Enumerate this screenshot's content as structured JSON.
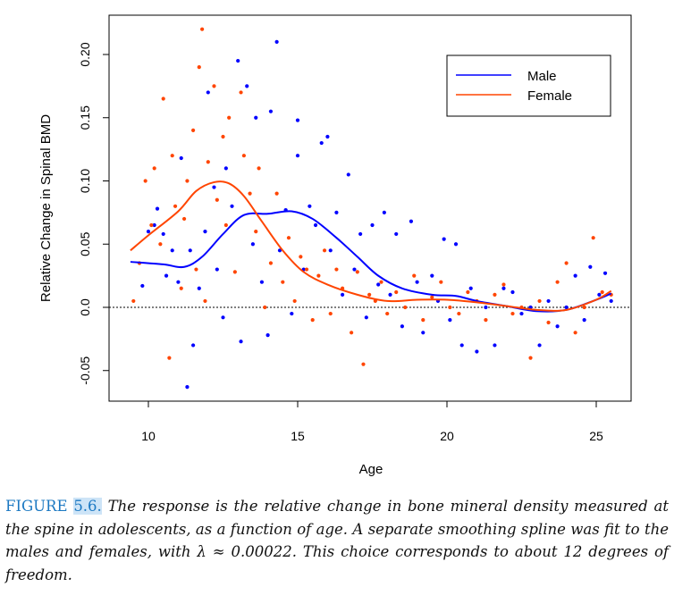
{
  "chart_data": {
    "type": "scatter",
    "xlabel": "Age",
    "ylabel": "Relative Change in Spinal BMD",
    "xlim": [
      9.4,
      25.9
    ],
    "ylim": [
      -0.074,
      0.231
    ],
    "xticks": [
      "10",
      "15",
      "20",
      "25"
    ],
    "xtick_values": [
      10,
      15,
      20,
      25
    ],
    "yticks": [
      "-0.05",
      "0.0",
      "0.05",
      "0.10",
      "0.15",
      "0.20"
    ],
    "ytick_values": [
      -0.05,
      0,
      0.05,
      0.1,
      0.15,
      0.2
    ],
    "reference_line": {
      "y": 0,
      "style": "dotted"
    },
    "grid": false,
    "legend_position": "top-right",
    "series": [
      {
        "name": "Male",
        "color": "#0000ff",
        "points": [
          [
            9.8,
            0.017
          ],
          [
            10.0,
            0.06
          ],
          [
            10.2,
            0.065
          ],
          [
            10.3,
            0.078
          ],
          [
            10.5,
            0.058
          ],
          [
            10.6,
            0.025
          ],
          [
            10.8,
            0.045
          ],
          [
            11.0,
            0.02
          ],
          [
            11.1,
            0.118
          ],
          [
            11.3,
            -0.063
          ],
          [
            11.4,
            0.045
          ],
          [
            11.5,
            -0.03
          ],
          [
            11.7,
            0.015
          ],
          [
            11.9,
            0.06
          ],
          [
            12.0,
            0.17
          ],
          [
            12.2,
            0.095
          ],
          [
            12.3,
            0.03
          ],
          [
            12.5,
            -0.008
          ],
          [
            12.6,
            0.11
          ],
          [
            12.8,
            0.08
          ],
          [
            13.0,
            0.195
          ],
          [
            13.1,
            -0.027
          ],
          [
            13.3,
            0.175
          ],
          [
            13.5,
            0.05
          ],
          [
            13.6,
            0.15
          ],
          [
            13.8,
            0.02
          ],
          [
            14.0,
            -0.022
          ],
          [
            14.1,
            0.155
          ],
          [
            14.3,
            0.21
          ],
          [
            14.4,
            0.045
          ],
          [
            14.6,
            0.077
          ],
          [
            14.8,
            -0.005
          ],
          [
            15.0,
            0.148
          ],
          [
            15.0,
            0.12
          ],
          [
            15.2,
            0.03
          ],
          [
            15.4,
            0.08
          ],
          [
            15.6,
            0.065
          ],
          [
            15.8,
            0.13
          ],
          [
            16.0,
            0.135
          ],
          [
            16.1,
            0.045
          ],
          [
            16.3,
            0.075
          ],
          [
            16.5,
            0.01
          ],
          [
            16.7,
            0.105
          ],
          [
            16.9,
            0.03
          ],
          [
            17.1,
            0.058
          ],
          [
            17.3,
            -0.008
          ],
          [
            17.5,
            0.065
          ],
          [
            17.7,
            0.018
          ],
          [
            17.9,
            0.075
          ],
          [
            18.1,
            0.01
          ],
          [
            18.3,
            0.058
          ],
          [
            18.5,
            -0.015
          ],
          [
            18.8,
            0.068
          ],
          [
            19.0,
            0.02
          ],
          [
            19.2,
            -0.02
          ],
          [
            19.5,
            0.025
          ],
          [
            19.7,
            0.005
          ],
          [
            19.9,
            0.054
          ],
          [
            20.1,
            -0.01
          ],
          [
            20.3,
            0.05
          ],
          [
            20.5,
            -0.03
          ],
          [
            20.8,
            0.015
          ],
          [
            21.0,
            -0.035
          ],
          [
            21.3,
            0.0
          ],
          [
            21.6,
            -0.03
          ],
          [
            21.9,
            0.015
          ],
          [
            22.2,
            0.012
          ],
          [
            22.5,
            -0.005
          ],
          [
            22.8,
            0.0
          ],
          [
            23.1,
            -0.03
          ],
          [
            23.4,
            0.005
          ],
          [
            23.7,
            -0.015
          ],
          [
            24.0,
            0.0
          ],
          [
            24.3,
            0.025
          ],
          [
            24.6,
            -0.01
          ],
          [
            24.8,
            0.032
          ],
          [
            25.1,
            0.01
          ],
          [
            25.3,
            0.027
          ],
          [
            25.5,
            0.005
          ]
        ],
        "smooth": [
          [
            9.4,
            0.036
          ],
          [
            10.5,
            0.034
          ],
          [
            11.2,
            0.032
          ],
          [
            11.8,
            0.04
          ],
          [
            12.5,
            0.058
          ],
          [
            13.2,
            0.073
          ],
          [
            14.0,
            0.074
          ],
          [
            14.8,
            0.076
          ],
          [
            15.5,
            0.07
          ],
          [
            16.3,
            0.055
          ],
          [
            17.0,
            0.04
          ],
          [
            17.7,
            0.025
          ],
          [
            18.5,
            0.015
          ],
          [
            19.5,
            0.01
          ],
          [
            20.3,
            0.009
          ],
          [
            21.0,
            0.005
          ],
          [
            22.0,
            0.001
          ],
          [
            23.0,
            -0.003
          ],
          [
            24.0,
            -0.002
          ],
          [
            25.0,
            0.006
          ],
          [
            25.5,
            0.011
          ]
        ]
      },
      {
        "name": "Female",
        "color": "#ff4500",
        "points": [
          [
            9.5,
            0.005
          ],
          [
            9.7,
            0.035
          ],
          [
            9.9,
            0.1
          ],
          [
            10.1,
            0.065
          ],
          [
            10.2,
            0.11
          ],
          [
            10.4,
            0.05
          ],
          [
            10.5,
            0.165
          ],
          [
            10.7,
            -0.04
          ],
          [
            10.8,
            0.12
          ],
          [
            10.9,
            0.08
          ],
          [
            11.1,
            0.015
          ],
          [
            11.2,
            0.07
          ],
          [
            11.3,
            0.1
          ],
          [
            11.5,
            0.14
          ],
          [
            11.6,
            0.03
          ],
          [
            11.7,
            0.19
          ],
          [
            11.8,
            0.22
          ],
          [
            11.9,
            0.005
          ],
          [
            12.0,
            0.115
          ],
          [
            12.2,
            0.175
          ],
          [
            12.3,
            0.085
          ],
          [
            12.5,
            0.135
          ],
          [
            12.6,
            0.065
          ],
          [
            12.7,
            0.15
          ],
          [
            12.9,
            0.028
          ],
          [
            13.1,
            0.17
          ],
          [
            13.2,
            0.12
          ],
          [
            13.4,
            0.09
          ],
          [
            13.6,
            0.06
          ],
          [
            13.7,
            0.11
          ],
          [
            13.9,
            0.0
          ],
          [
            14.1,
            0.035
          ],
          [
            14.3,
            0.09
          ],
          [
            14.5,
            0.02
          ],
          [
            14.7,
            0.055
          ],
          [
            14.9,
            0.005
          ],
          [
            15.1,
            0.04
          ],
          [
            15.3,
            0.03
          ],
          [
            15.5,
            -0.01
          ],
          [
            15.7,
            0.025
          ],
          [
            15.9,
            0.045
          ],
          [
            16.1,
            -0.005
          ],
          [
            16.3,
            0.03
          ],
          [
            16.5,
            0.015
          ],
          [
            16.8,
            -0.02
          ],
          [
            17.0,
            0.028
          ],
          [
            17.2,
            -0.045
          ],
          [
            17.4,
            0.01
          ],
          [
            17.6,
            0.005
          ],
          [
            17.8,
            0.02
          ],
          [
            18.0,
            -0.005
          ],
          [
            18.3,
            0.012
          ],
          [
            18.6,
            0.0
          ],
          [
            18.9,
            0.025
          ],
          [
            19.2,
            -0.01
          ],
          [
            19.5,
            0.008
          ],
          [
            19.8,
            0.02
          ],
          [
            20.1,
            0.0
          ],
          [
            20.4,
            -0.005
          ],
          [
            20.7,
            0.012
          ],
          [
            21.0,
            0.005
          ],
          [
            21.3,
            -0.01
          ],
          [
            21.6,
            0.01
          ],
          [
            21.9,
            0.018
          ],
          [
            22.2,
            -0.005
          ],
          [
            22.5,
            0.0
          ],
          [
            22.8,
            -0.04
          ],
          [
            23.1,
            0.005
          ],
          [
            23.4,
            -0.012
          ],
          [
            23.7,
            0.02
          ],
          [
            24.0,
            0.035
          ],
          [
            24.3,
            -0.02
          ],
          [
            24.6,
            0.0
          ],
          [
            24.9,
            0.055
          ],
          [
            25.2,
            0.012
          ],
          [
            25.5,
            0.01
          ]
        ],
        "smooth": [
          [
            9.4,
            0.045
          ],
          [
            10.0,
            0.057
          ],
          [
            11.0,
            0.076
          ],
          [
            11.6,
            0.092
          ],
          [
            12.2,
            0.099
          ],
          [
            12.7,
            0.098
          ],
          [
            13.2,
            0.088
          ],
          [
            13.8,
            0.068
          ],
          [
            14.5,
            0.045
          ],
          [
            15.2,
            0.028
          ],
          [
            16.0,
            0.018
          ],
          [
            17.0,
            0.01
          ],
          [
            18.0,
            0.005
          ],
          [
            19.0,
            0.006
          ],
          [
            20.0,
            0.006
          ],
          [
            21.0,
            0.004
          ],
          [
            22.0,
            0.001
          ],
          [
            23.0,
            -0.002
          ],
          [
            24.0,
            -0.002
          ],
          [
            25.0,
            0.006
          ],
          [
            25.5,
            0.013
          ]
        ]
      }
    ]
  },
  "caption": {
    "label": "FIGURE",
    "number": "5.6.",
    "text": "The response is the relative change in bone mineral density measured at the spine in adolescents, as a function of age. A separate smoothing spline was fit to the males and females, with λ ≈ 0.00022. This choice corresponds to about 12 degrees of freedom."
  }
}
